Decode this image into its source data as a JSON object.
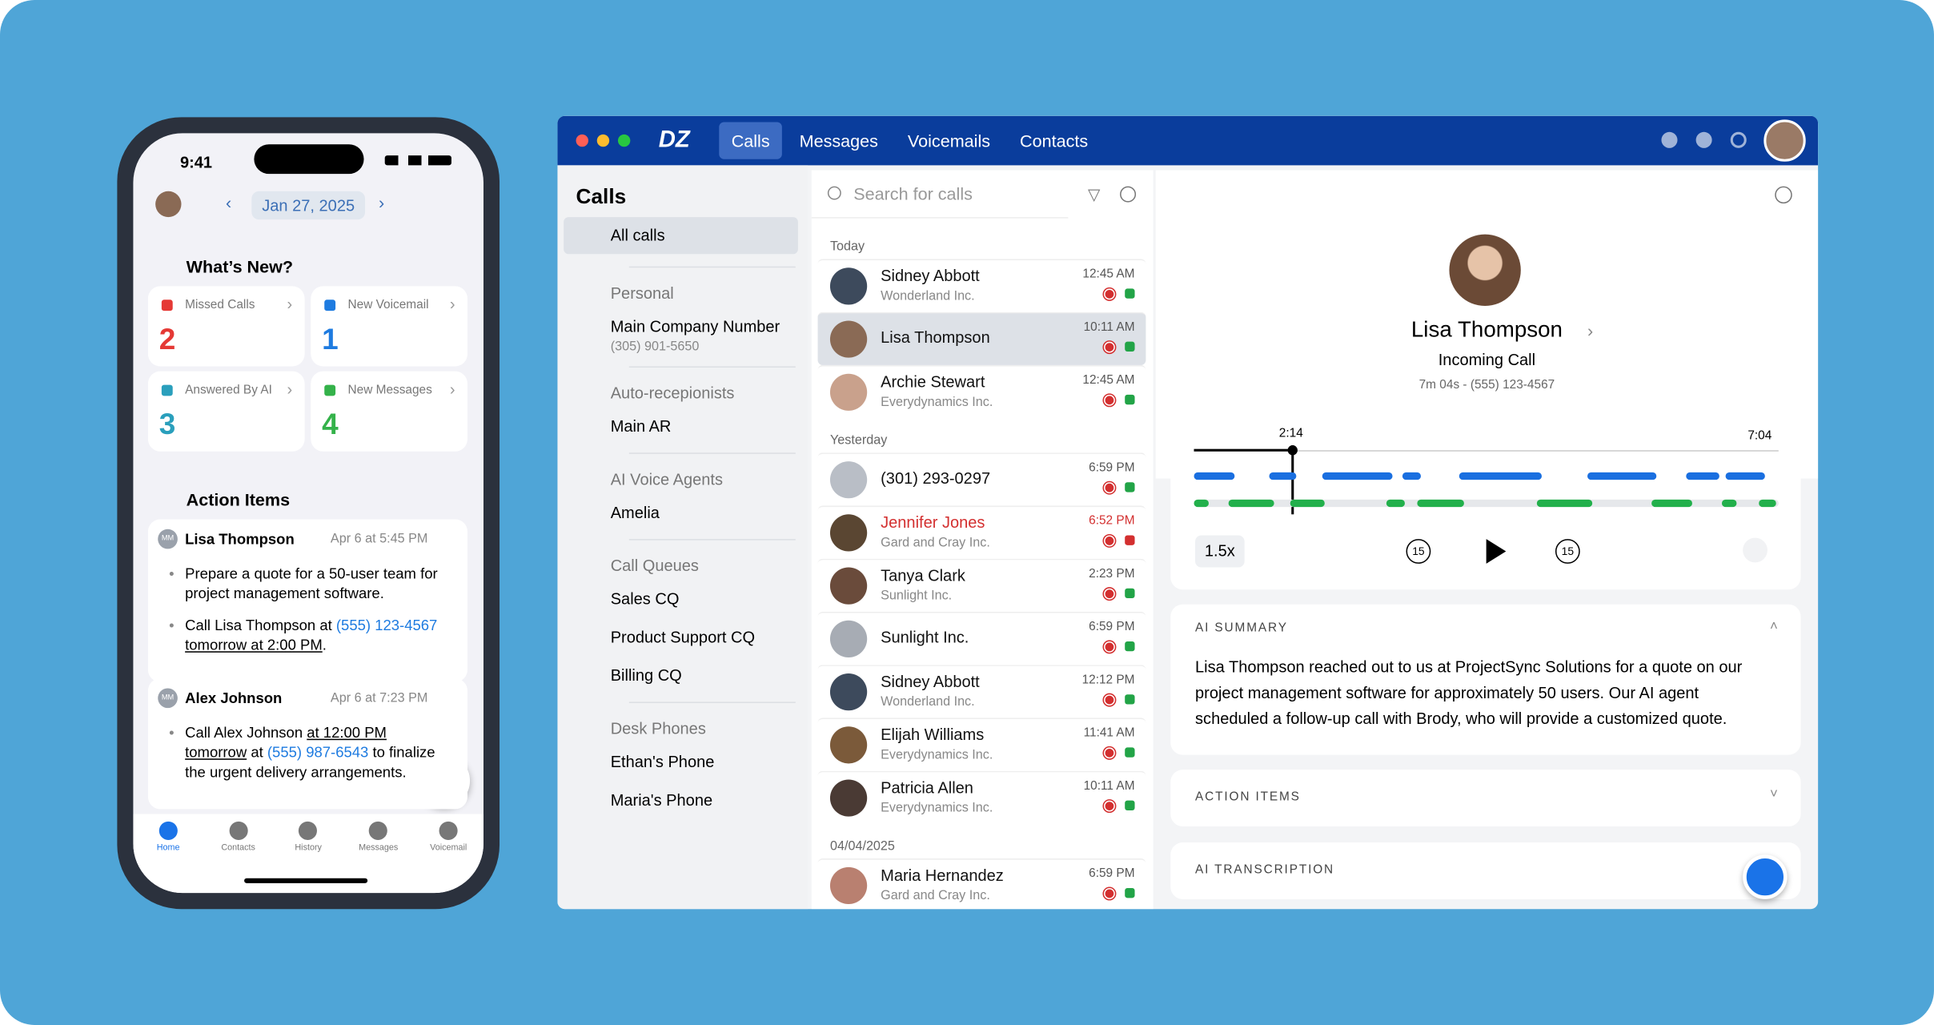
{
  "phone": {
    "time": "9:41",
    "date": "Jan 27, 2025",
    "whats_new": "What’s New?",
    "cards": [
      {
        "label": "Missed Calls",
        "count": 2,
        "color": "#e53935"
      },
      {
        "label": "New Voicemail",
        "count": 1,
        "color": "#1e7be0"
      },
      {
        "label": "Answered By AI",
        "count": 3,
        "color": "#2a9fbc"
      },
      {
        "label": "New Messages",
        "count": 4,
        "color": "#34b24a"
      }
    ],
    "action_items_title": "Action Items",
    "actions": [
      {
        "initials": "MM",
        "name": "Lisa Thompson",
        "time": "Apr 6 at 5:45 PM",
        "bullets": [
          [
            {
              "text": "Prepare a quote for a 50-user team for project management software."
            }
          ],
          [
            {
              "text": "Call Lisa Thompson at "
            },
            {
              "text": "(555) 123-4567",
              "link": true
            },
            {
              "text": " "
            },
            {
              "text": "tomorrow at 2:00 PM",
              "underline": true
            },
            {
              "text": "."
            }
          ]
        ]
      },
      {
        "initials": "MM",
        "name": "Alex Johnson",
        "time": "Apr 6 at 7:23 PM",
        "bullets": [
          [
            {
              "text": "Call Alex Johnson "
            },
            {
              "text": "at 12:00 PM tomorrow",
              "underline": true
            },
            {
              "text": " at "
            },
            {
              "text": "(555) 987-6543",
              "link": true
            },
            {
              "text": " to finalize the urgent delivery arrangements."
            }
          ]
        ]
      }
    ],
    "tabs": [
      "Home",
      "Contacts",
      "History",
      "Messages",
      "Voicemail"
    ]
  },
  "desktop": {
    "nav": [
      "Calls",
      "Messages",
      "Voicemails",
      "Contacts"
    ],
    "sidebar": {
      "title": "Calls",
      "all": "All calls",
      "groups": [
        {
          "title": "Personal",
          "items": [
            {
              "name": "Main Company Number",
              "sub": "(305) 901-5650"
            }
          ]
        },
        {
          "title": "Auto-recepionists",
          "items": [
            {
              "name": "Main AR"
            }
          ]
        },
        {
          "title": "AI Voice Agents",
          "items": [
            {
              "name": "Amelia"
            }
          ]
        },
        {
          "title": "Call Queues",
          "items": [
            {
              "name": "Sales CQ"
            },
            {
              "name": "Product Support CQ"
            },
            {
              "name": "Billing CQ"
            }
          ]
        },
        {
          "title": "Desk Phones",
          "items": [
            {
              "name": "Ethan's Phone"
            },
            {
              "name": "Maria's Phone"
            }
          ]
        }
      ]
    },
    "search": "Search for calls",
    "sections": [
      {
        "label": "Today",
        "calls": [
          {
            "name": "Sidney Abbott",
            "company": "Wonderland Inc.",
            "time": "12:45 AM"
          },
          {
            "name": "Lisa Thompson",
            "time": "10:11 AM"
          },
          {
            "name": "Archie Stewart",
            "company": "Everydynamics Inc.",
            "time": "12:45 AM"
          }
        ]
      },
      {
        "label": "Yesterday",
        "calls": [
          {
            "name": "(301) 293-0297",
            "time": "6:59 PM"
          },
          {
            "name": "Jennifer Jones",
            "company": "Gard and Cray Inc.",
            "time": "6:52 PM",
            "color": "#d32f2f"
          },
          {
            "name": "Tanya Clark",
            "company": "Sunlight Inc.",
            "time": "2:23 PM"
          },
          {
            "name": "Sunlight Inc.",
            "time": "6:59 PM"
          },
          {
            "name": "Sidney Abbott",
            "company": "Wonderland Inc.",
            "time": "12:12 PM"
          },
          {
            "name": "Elijah Williams",
            "company": "Everydynamics Inc.",
            "time": "11:41 AM"
          },
          {
            "name": "Patricia Allen",
            "company": "Everydynamics Inc.",
            "time": "10:11 AM"
          }
        ]
      },
      {
        "label": "04/04/2025",
        "calls": [
          {
            "name": "Maria Hernandez",
            "company": "Gard and Cray Inc.",
            "time": "6:59 PM"
          }
        ]
      }
    ],
    "detail": {
      "name": "Lisa Thompson",
      "status": "Incoming Call",
      "meta": "7m 04s - (555) 123-4567",
      "position": "2:14",
      "duration": "7:04",
      "speed": "1.5x",
      "skip_back": "15",
      "skip_forward": "15",
      "summary_title": "AI SUMMARY",
      "summary": "Lisa Thompson reached out to us at ProjectSync Solutions for a quote on our project management software for approximately 50 users. Our AI agent scheduled a follow-up call with Brody, who will provide a customized quote.",
      "action_items": "ACTION ITEMS",
      "transcription": "AI TRANSCRIPTION"
    }
  }
}
